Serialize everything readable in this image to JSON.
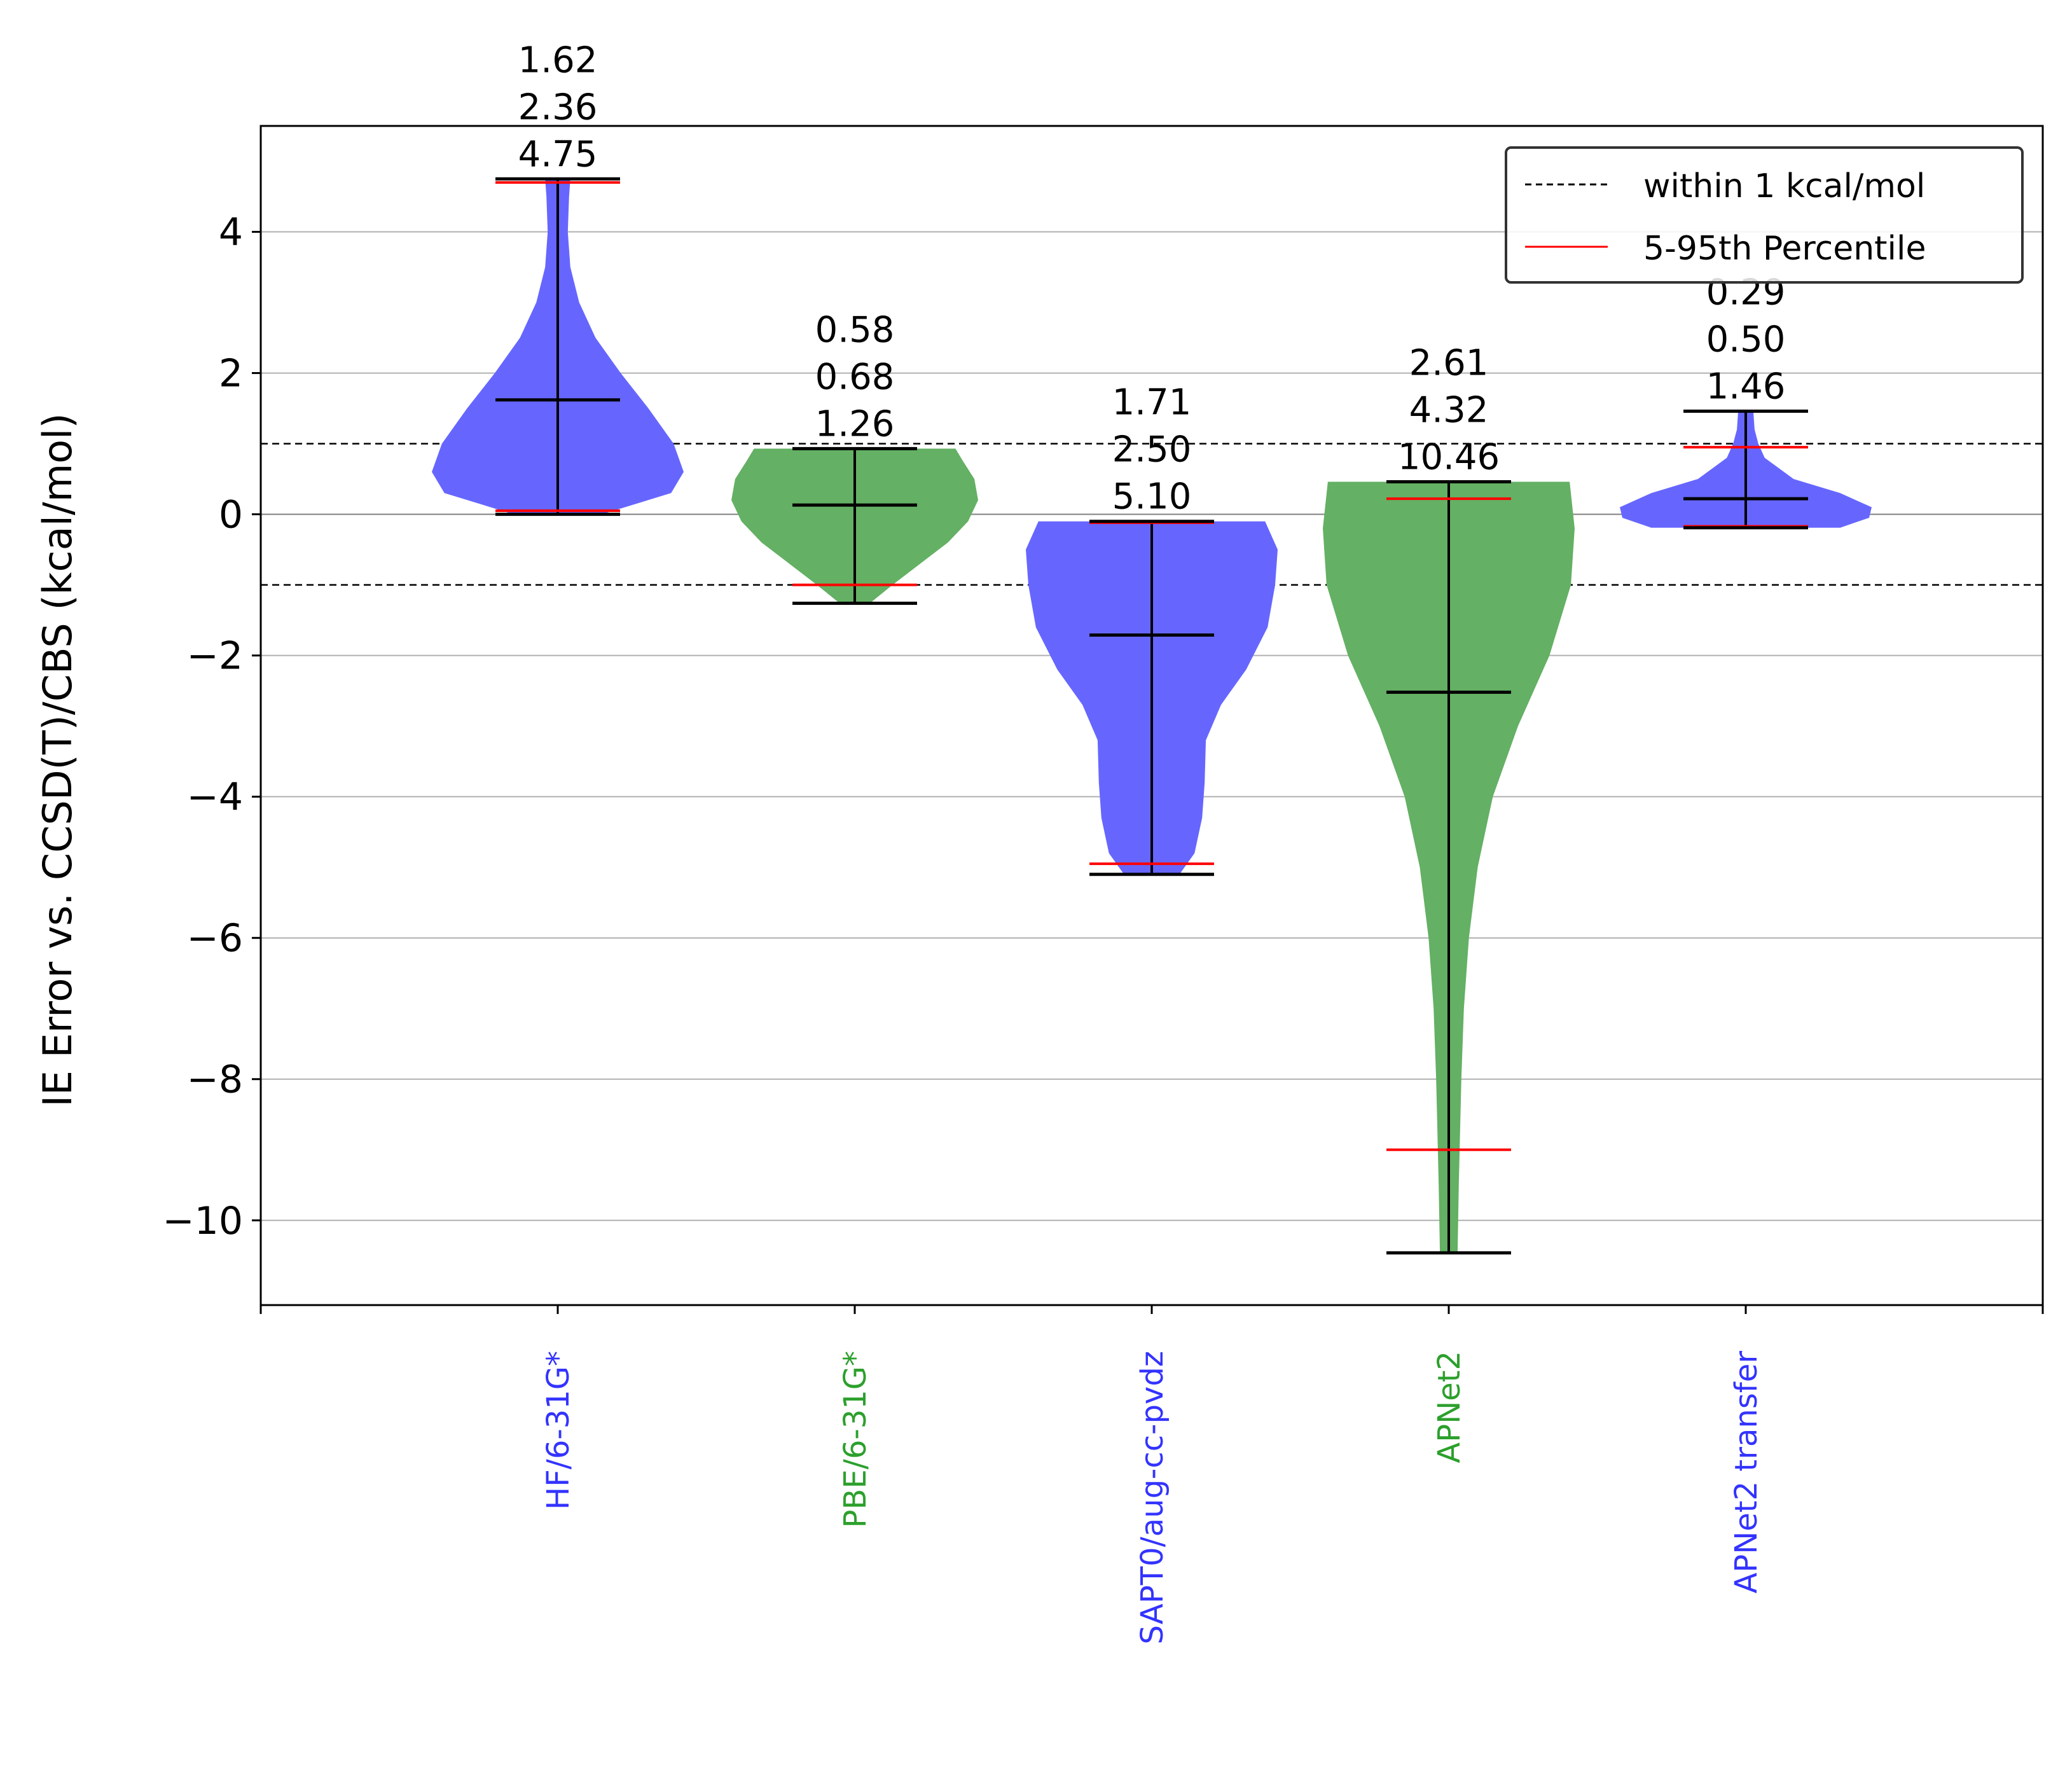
{
  "chart_data": {
    "type": "violin",
    "ylabel": "IE Error vs. CCSD(T)/CBS (kcal/mol)",
    "ylim": [
      -11.2,
      5.5
    ],
    "yticks": [
      4,
      2,
      0,
      -2,
      -4,
      -6,
      -8,
      -10
    ],
    "ytick_labels": [
      "4",
      "2",
      "0",
      "−2",
      "−4",
      "−6",
      "−8",
      "−10"
    ],
    "grid": "horizontal",
    "reference_lines": [
      {
        "y": 1,
        "style": "dashed"
      },
      {
        "y": -1,
        "style": "dashed"
      },
      {
        "y": 0,
        "style": "solid-gray"
      }
    ],
    "legend": {
      "placement": "top-right",
      "entries": [
        {
          "label": "within 1 kcal/mol",
          "style": "dashed",
          "color": "#000000"
        },
        {
          "label": "5-95th Percentile",
          "style": "solid",
          "color": "#ff0000"
        }
      ]
    },
    "colors": {
      "blue": "#6666ff",
      "green": "#64b064",
      "blue_label": "#3333ff",
      "green_label": "#2ca02c",
      "percentile": "#ff0000"
    },
    "categories": [
      {
        "label": "HF/6-31G*",
        "color": "blue",
        "min": 0.0,
        "max": 4.75,
        "median": 1.62,
        "p5": 0.05,
        "p95": 4.7,
        "stats": [
          "1.62",
          "2.36",
          "4.75"
        ],
        "profile": [
          [
            0.0,
            0.35
          ],
          [
            0.3,
            0.9
          ],
          [
            0.6,
            1.0
          ],
          [
            1.0,
            0.92
          ],
          [
            1.5,
            0.72
          ],
          [
            2.0,
            0.5
          ],
          [
            2.5,
            0.3
          ],
          [
            3.0,
            0.17
          ],
          [
            3.5,
            0.1
          ],
          [
            4.0,
            0.08
          ],
          [
            4.5,
            0.09
          ],
          [
            4.75,
            0.1
          ]
        ]
      },
      {
        "label": "PBE/6-31G*",
        "color": "green",
        "min": -1.26,
        "max": 0.93,
        "median": 0.13,
        "p5": -1.0,
        "p95": 0.93,
        "stats": [
          "0.58",
          "0.68",
          "1.26"
        ],
        "profile": [
          [
            -1.26,
            0.12
          ],
          [
            -1.0,
            0.3
          ],
          [
            -0.7,
            0.52
          ],
          [
            -0.4,
            0.74
          ],
          [
            -0.1,
            0.9
          ],
          [
            0.2,
            0.98
          ],
          [
            0.5,
            0.95
          ],
          [
            0.75,
            0.86
          ],
          [
            0.93,
            0.8
          ]
        ]
      },
      {
        "label": "SAPT0/aug-cc-pvdz",
        "color": "blue",
        "min": -5.1,
        "max": -0.1,
        "median": -1.71,
        "p5": -4.95,
        "p95": -0.12,
        "stats": [
          "1.71",
          "2.50",
          "5.10"
        ],
        "profile": [
          [
            -5.1,
            0.22
          ],
          [
            -4.8,
            0.34
          ],
          [
            -4.3,
            0.4
          ],
          [
            -3.8,
            0.42
          ],
          [
            -3.2,
            0.43
          ],
          [
            -2.7,
            0.55
          ],
          [
            -2.2,
            0.75
          ],
          [
            -1.6,
            0.92
          ],
          [
            -1.0,
            0.98
          ],
          [
            -0.5,
            1.0
          ],
          [
            -0.1,
            0.9
          ]
        ]
      },
      {
        "label": "APNet2",
        "color": "green",
        "min": -10.46,
        "max": 0.46,
        "median": -2.52,
        "p5": -9.0,
        "p95": 0.22,
        "stats": [
          "2.61",
          "4.32",
          "10.46"
        ],
        "profile": [
          [
            -10.46,
            0.07
          ],
          [
            -9.5,
            0.08
          ],
          [
            -8.0,
            0.1
          ],
          [
            -7.0,
            0.12
          ],
          [
            -6.0,
            0.16
          ],
          [
            -5.0,
            0.23
          ],
          [
            -4.0,
            0.35
          ],
          [
            -3.0,
            0.55
          ],
          [
            -2.0,
            0.8
          ],
          [
            -1.0,
            0.97
          ],
          [
            -0.2,
            1.0
          ],
          [
            0.46,
            0.96
          ]
        ]
      },
      {
        "label": "APNet2 transfer",
        "color": "blue",
        "min": -0.19,
        "max": 1.46,
        "median": 0.22,
        "p5": -0.17,
        "p95": 0.95,
        "stats": [
          "0.29",
          "0.50",
          "1.46"
        ],
        "profile": [
          [
            -0.19,
            0.75
          ],
          [
            -0.05,
            0.98
          ],
          [
            0.1,
            1.0
          ],
          [
            0.3,
            0.75
          ],
          [
            0.5,
            0.38
          ],
          [
            0.8,
            0.15
          ],
          [
            1.0,
            0.1
          ],
          [
            1.2,
            0.07
          ],
          [
            1.46,
            0.06
          ]
        ]
      }
    ]
  }
}
